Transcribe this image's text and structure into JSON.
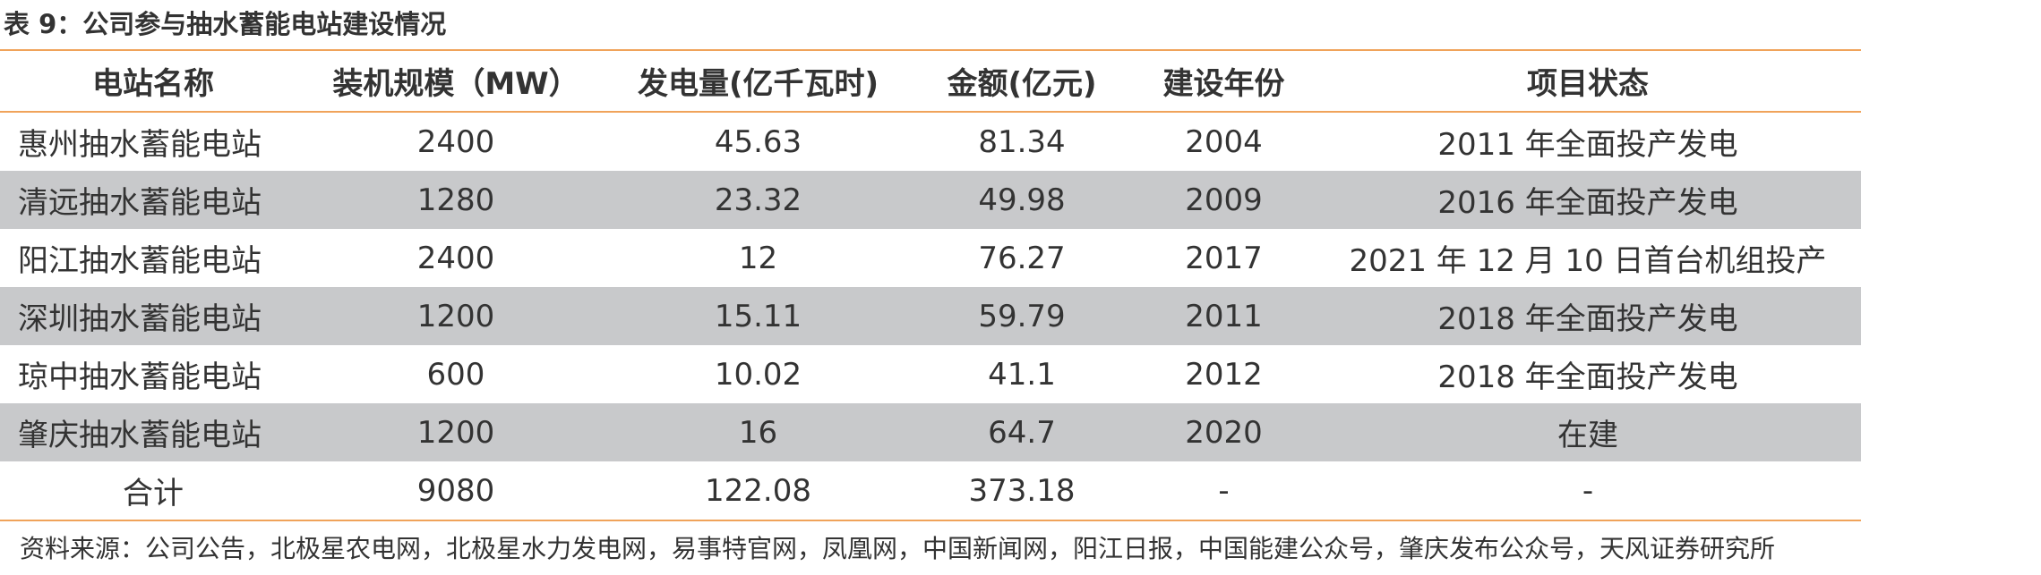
{
  "header": {
    "title": "表 9：公司参与抽水蓄能电站建设情况"
  },
  "table": {
    "columns": [
      "电站名称",
      "装机规模（MW）",
      "发电量(亿千瓦时)",
      "金额(亿元)",
      "建设年份",
      "项目状态"
    ],
    "rows": [
      [
        "惠州抽水蓄能电站",
        2400,
        45.63,
        81.34,
        2004,
        "2011 年全面投产发电"
      ],
      [
        "清远抽水蓄能电站",
        1280,
        23.32,
        49.98,
        2009,
        "2016 年全面投产发电"
      ],
      [
        "阳江抽水蓄能电站",
        2400,
        12,
        76.27,
        2017,
        "2021 年 12 月 10 日首台机组投产"
      ],
      [
        "深圳抽水蓄能电站",
        1200,
        15.11,
        59.79,
        2011,
        "2018 年全面投产发电"
      ],
      [
        "琼中抽水蓄能电站",
        600,
        10.02,
        41.1,
        2012,
        "2018 年全面投产发电"
      ],
      [
        "肇庆抽水蓄能电站",
        1200,
        16,
        64.7,
        2020,
        "在建"
      ],
      [
        "合计",
        9080,
        122.08,
        373.18,
        "-",
        "-"
      ]
    ]
  },
  "source": "资料来源：公司公告，北极星农电网，北极星水力发电网，易事特官网，凤凰网，中国新闻网，阳江日报，中国能建公众号，肇庆发布公众号，天风证券研究所"
}
